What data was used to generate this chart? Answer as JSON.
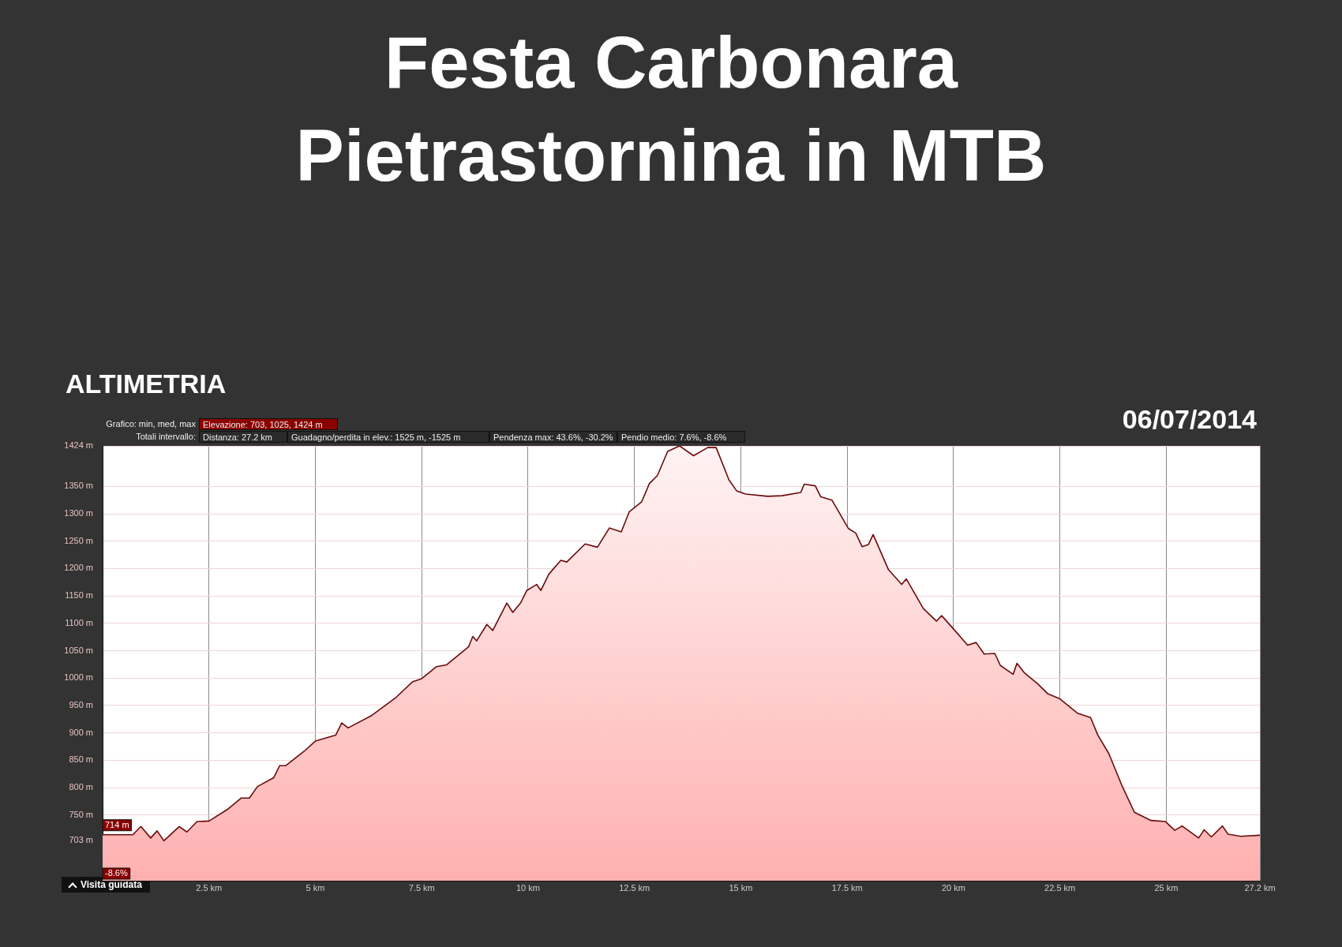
{
  "chart_data": {
    "type": "area",
    "title": "Festa Carbonara\nPietrastornina in MTB",
    "subtitle": "ALTIMETRIA",
    "xlim": [
      0,
      27.2
    ],
    "xticks": [
      {
        "value": 2.5,
        "label": "2.5 km"
      },
      {
        "value": 5,
        "label": "5 km"
      },
      {
        "value": 7.5,
        "label": "7.5 km"
      },
      {
        "value": 10,
        "label": "10 km"
      },
      {
        "value": 12.5,
        "label": "12.5 km"
      },
      {
        "value": 15,
        "label": "15 km"
      },
      {
        "value": 17.5,
        "label": "17.5 km"
      },
      {
        "value": 20,
        "label": "20 km"
      },
      {
        "value": 22.5,
        "label": "22.5 km"
      },
      {
        "value": 25,
        "label": "25 km"
      },
      {
        "value": 27.2,
        "label": "27.2 km"
      }
    ],
    "ylim": [
      630,
      1424
    ],
    "yticks": [
      {
        "value": 703,
        "label": "703 m"
      },
      {
        "value": 750,
        "label": "750 m"
      },
      {
        "value": 800,
        "label": "800 m"
      },
      {
        "value": 850,
        "label": "850 m"
      },
      {
        "value": 900,
        "label": "900 m"
      },
      {
        "value": 950,
        "label": "950 m"
      },
      {
        "value": 1000,
        "label": "1000 m"
      },
      {
        "value": 1050,
        "label": "1050 m"
      },
      {
        "value": 1100,
        "label": "1100 m"
      },
      {
        "value": 1150,
        "label": "1150 m"
      },
      {
        "value": 1200,
        "label": "1200 m"
      },
      {
        "value": 1250,
        "label": "1250 m"
      },
      {
        "value": 1300,
        "label": "1300 m"
      },
      {
        "value": 1350,
        "label": "1350 m"
      },
      {
        "value": 1424,
        "label": "1424 m"
      }
    ],
    "grid": true,
    "marker": "none",
    "series": [
      {
        "color": "#6b0a0a",
        "x": [
          0,
          0.71,
          0.9,
          1.13,
          1.28,
          1.44,
          1.8,
          1.98,
          2.22,
          2.5,
          2.93,
          3.26,
          3.45,
          3.64,
          4.02,
          4.16,
          4.3,
          4.73,
          5.0,
          5.48,
          5.62,
          5.77,
          6.33,
          6.9,
          7.28,
          7.5,
          7.85,
          8.08,
          8.6,
          8.7,
          8.79,
          9.03,
          9.17,
          9.5,
          9.64,
          9.83,
          9.97,
          10.2,
          10.3,
          10.49,
          10.77,
          10.91,
          11.34,
          11.63,
          11.91,
          12.19,
          12.38,
          12.67,
          12.85,
          13.04,
          13.28,
          13.56,
          13.89,
          14.22,
          14.42,
          14.72,
          14.9,
          15.11,
          15.63,
          15.97,
          16.41,
          16.49,
          16.75,
          16.88,
          17.14,
          17.53,
          17.7,
          17.85,
          18.0,
          18.11,
          18.47,
          18.78,
          18.89,
          19.29,
          19.6,
          19.72,
          20.03,
          20.33,
          20.53,
          20.72,
          20.97,
          21.1,
          21.4,
          21.49,
          21.66,
          21.97,
          22.22,
          22.5,
          22.91,
          23.22,
          23.39,
          23.65,
          23.95,
          24.25,
          24.64,
          24.98,
          25.2,
          25.37,
          25.76,
          25.89,
          26.06,
          26.32,
          26.45,
          26.75,
          27.2
        ],
        "values": [
          714,
          714,
          729,
          708,
          721,
          703,
          729,
          719,
          738,
          739,
          760,
          781,
          781,
          802,
          818,
          840,
          840,
          866,
          885,
          896,
          918,
          909,
          932,
          965,
          993,
          999,
          1021,
          1024,
          1057,
          1076,
          1068,
          1098,
          1087,
          1137,
          1120,
          1138,
          1160,
          1171,
          1160,
          1190,
          1215,
          1212,
          1245,
          1239,
          1274,
          1267,
          1304,
          1322,
          1355,
          1370,
          1414,
          1424,
          1406,
          1421,
          1421,
          1362,
          1342,
          1336,
          1332,
          1333,
          1339,
          1354,
          1351,
          1331,
          1325,
          1273,
          1265,
          1240,
          1244,
          1262,
          1198,
          1171,
          1181,
          1127,
          1104,
          1114,
          1087,
          1060,
          1065,
          1044,
          1045,
          1023,
          1007,
          1027,
          1010,
          990,
          971,
          962,
          936,
          928,
          896,
          862,
          805,
          755,
          740,
          738,
          722,
          730,
          708,
          723,
          710,
          730,
          715,
          711,
          713
        ]
      }
    ],
    "annotations": [
      "Grafico: min, med, max",
      "Elevazione: 703, 1025, 1424 m",
      "Totali intervallo:",
      "Distanza: 27.2 km",
      "Guadagno/perdita in elev.: 1525 m, -1525 m",
      "Pendenza max: 43.6%, -30.2%",
      "Pendio medio: 7.6%, -8.6%",
      "06/07/2014",
      {
        "text": "714 m",
        "x": 0,
        "y": 714
      },
      "-8.6%",
      "Visita guidata"
    ]
  }
}
